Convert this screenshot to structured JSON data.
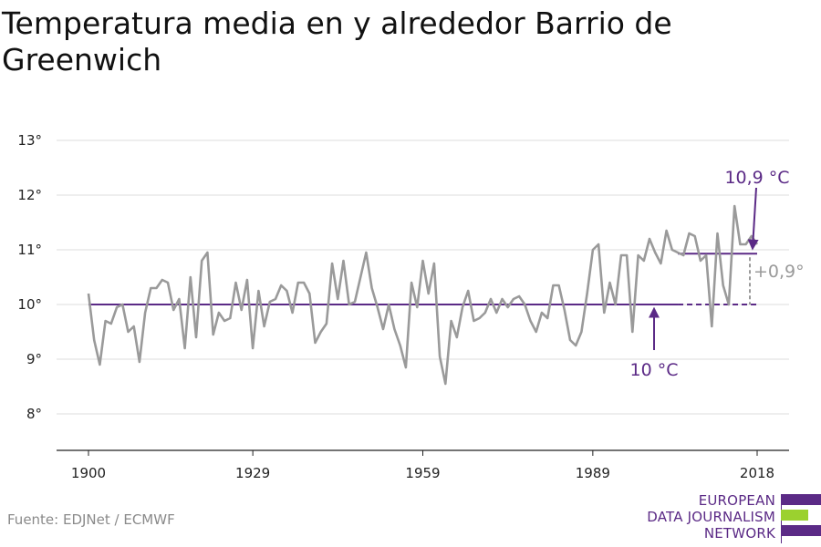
{
  "title": "Temperatura media en y alrededor Barrio de Greenwich",
  "source": "Fuente: EDJNet / ECMWF",
  "logo": {
    "lines": [
      "EUROPEAN",
      "DATA JOURNALISM",
      "NETWORK"
    ],
    "colors": {
      "purple": "#5b2a86",
      "green": "#9bd12f"
    }
  },
  "colors": {
    "series": "#9a9a9a",
    "reference": "#5b2a86",
    "grid": "#dddddd"
  },
  "chart_data": {
    "type": "line",
    "title": "Temperatura media en y alrededor Barrio de Greenwich",
    "xlim": [
      1900,
      2018
    ],
    "ylim": [
      7.3,
      13.3
    ],
    "x_ticks": [
      1900,
      1929,
      1959,
      1989,
      2018
    ],
    "x_tick_labels": [
      "1900",
      "1929",
      "1959",
      "1989",
      "2018"
    ],
    "y_ticks": [
      8,
      9,
      10,
      11,
      12,
      13
    ],
    "y_tick_labels": [
      "8°",
      "9°",
      "10°",
      "11°",
      "12°",
      "13°"
    ],
    "grid": true,
    "series": [
      {
        "x_start": 1900,
        "values": [
          10.2,
          9.35,
          8.9,
          9.7,
          9.65,
          9.95,
          10.0,
          9.5,
          9.6,
          8.95,
          9.85,
          10.3,
          10.3,
          10.45,
          10.4,
          9.9,
          10.1,
          9.2,
          10.5,
          9.4,
          10.8,
          10.95,
          9.45,
          9.85,
          9.7,
          9.75,
          10.4,
          9.9,
          10.45,
          9.2,
          10.25,
          9.6,
          10.05,
          10.1,
          10.35,
          10.25,
          9.85,
          10.4,
          10.4,
          10.2,
          9.3,
          9.5,
          9.65,
          10.75,
          10.1,
          10.8,
          10.0,
          10.05,
          10.5,
          10.95,
          10.3,
          9.95,
          9.55,
          10.0,
          9.55,
          9.25,
          8.85,
          10.4,
          9.95,
          10.8,
          10.2,
          10.75,
          9.05,
          8.55,
          9.7,
          9.4,
          9.95,
          10.25,
          9.7,
          9.75,
          9.85,
          10.1,
          9.85,
          10.1,
          9.95,
          10.1,
          10.15,
          10.0,
          9.7,
          9.5,
          9.85,
          9.75,
          10.35,
          10.35,
          9.9,
          9.35,
          9.25,
          9.5,
          10.2,
          11.0,
          11.1,
          9.85,
          10.4,
          10.0,
          10.9,
          10.9,
          9.5,
          10.9,
          10.8,
          11.2,
          10.95,
          10.75,
          11.35,
          11.0,
          10.95,
          10.9,
          11.3,
          11.25,
          10.8,
          10.9,
          9.6,
          11.3,
          10.35,
          10.0,
          11.8,
          11.1,
          11.1,
          11.25,
          11.1
        ]
      }
    ],
    "reference_lines": [
      {
        "label": "10 °C",
        "value": 10.0,
        "from": 1900,
        "solid_to": 2004,
        "dashed_to": 2018
      },
      {
        "label": "10,9 °C",
        "value": 10.93,
        "from": 2004,
        "to": 2018
      }
    ],
    "annotations": {
      "baseline_label": "10 °C",
      "recent_label": "10,9 °C",
      "difference_label": "+0,9°"
    }
  }
}
